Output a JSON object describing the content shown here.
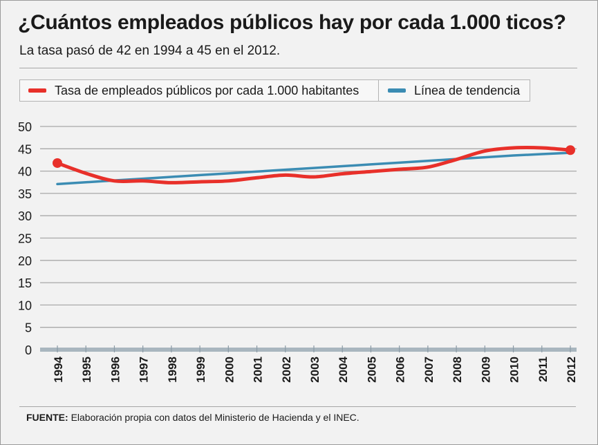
{
  "title": "¿Cuántos empleados públicos hay por cada 1.000 ticos?",
  "subtitle": "La tasa pasó de 42 en 1994 a 45 en el 2012.",
  "legend": {
    "series1": "Tasa de empleados públicos por cada 1.000 habitantes",
    "series2": "Línea de tendencia"
  },
  "source": {
    "label": "FUENTE:",
    "text": "Elaboración propia con datos del Ministerio de Hacienda y el INEC."
  },
  "colors": {
    "series1": "#e8302a",
    "series2": "#3b8cb3",
    "grid": "#a8a8a8",
    "baseline": "#a9b6bf"
  },
  "chart_data": {
    "type": "line",
    "x": [
      1994,
      1995,
      1996,
      1997,
      1998,
      1999,
      2000,
      2001,
      2002,
      2003,
      2004,
      2005,
      2006,
      2007,
      2008,
      2009,
      2010,
      2011,
      2012
    ],
    "x_tick_labels": [
      "1994",
      "1995",
      "1996",
      "1997",
      "1998",
      "1999",
      "2000",
      "2001",
      "2002",
      "2003",
      "2004",
      "2005",
      "2006",
      "2007",
      "2008",
      "2009",
      "2010",
      "2011",
      "2012"
    ],
    "y_ticks": [
      0,
      5,
      10,
      15,
      20,
      25,
      30,
      35,
      40,
      45,
      50
    ],
    "ylim": [
      0,
      50
    ],
    "grid": true,
    "legend_position": "top",
    "series": [
      {
        "name": "Tasa de empleados públicos por cada 1.000 habitantes",
        "values": [
          41.8,
          39.5,
          37.8,
          37.8,
          37.4,
          37.6,
          37.8,
          38.5,
          39.1,
          38.7,
          39.4,
          39.9,
          40.4,
          40.9,
          42.6,
          44.5,
          45.2,
          45.2,
          44.7
        ],
        "markers": [
          1994,
          2012
        ]
      },
      {
        "name": "Línea de tendencia",
        "values": [
          37.1,
          37.5,
          37.9,
          38.3,
          38.7,
          39.1,
          39.5,
          39.9,
          40.3,
          40.7,
          41.1,
          41.5,
          41.9,
          42.3,
          42.7,
          43.1,
          43.5,
          43.8,
          44.1
        ]
      }
    ]
  }
}
